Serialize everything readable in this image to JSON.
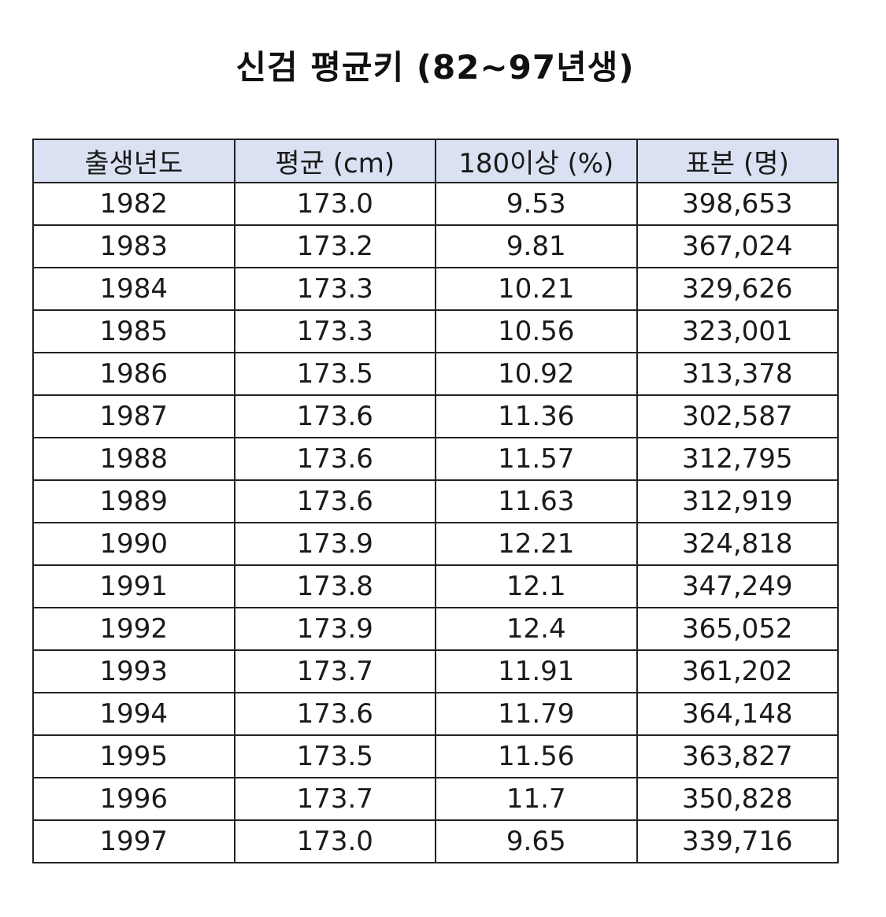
{
  "title": "신검 평균키 (82~97년생)",
  "colors": {
    "header_background": "#d9e1f2",
    "border": "#222222",
    "text": "#1a1a1a"
  },
  "chart_data": {
    "type": "table",
    "title": "신검 평균키 (82~97년생)",
    "columns": [
      "출생년도",
      "평균 (cm)",
      "180이상 (%)",
      "표본 (명)"
    ],
    "rows": [
      [
        "1982",
        "173.0",
        "9.53",
        "398,653"
      ],
      [
        "1983",
        "173.2",
        "9.81",
        "367,024"
      ],
      [
        "1984",
        "173.3",
        "10.21",
        "329,626"
      ],
      [
        "1985",
        "173.3",
        "10.56",
        "323,001"
      ],
      [
        "1986",
        "173.5",
        "10.92",
        "313,378"
      ],
      [
        "1987",
        "173.6",
        "11.36",
        "302,587"
      ],
      [
        "1988",
        "173.6",
        "11.57",
        "312,795"
      ],
      [
        "1989",
        "173.6",
        "11.63",
        "312,919"
      ],
      [
        "1990",
        "173.9",
        "12.21",
        "324,818"
      ],
      [
        "1991",
        "173.8",
        "12.1",
        "347,249"
      ],
      [
        "1992",
        "173.9",
        "12.4",
        "365,052"
      ],
      [
        "1993",
        "173.7",
        "11.91",
        "361,202"
      ],
      [
        "1994",
        "173.6",
        "11.79",
        "364,148"
      ],
      [
        "1995",
        "173.5",
        "11.56",
        "363,827"
      ],
      [
        "1996",
        "173.7",
        "11.7",
        "350,828"
      ],
      [
        "1997",
        "173.0",
        "9.65",
        "339,716"
      ]
    ]
  }
}
